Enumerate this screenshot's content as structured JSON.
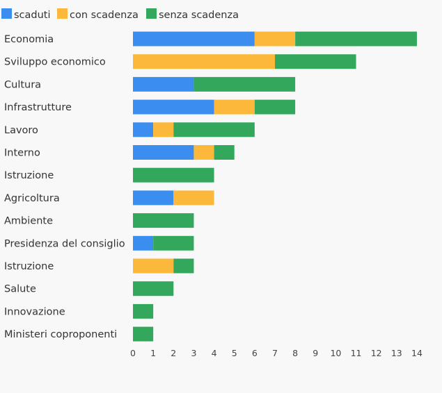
{
  "chart_data": {
    "type": "bar",
    "orientation": "horizontal",
    "stacked": true,
    "categories": [
      "Economia",
      "Sviluppo economico",
      "Cultura",
      "Infrastrutture",
      "Lavoro",
      "Interno",
      "Istruzione",
      "Agricoltura",
      "Ambiente",
      "Presidenza del consiglio",
      "Istruzione",
      "Salute",
      "Innovazione",
      "Ministeri coproponenti"
    ],
    "series": [
      {
        "name": "scaduti",
        "color": "#3b8ef0",
        "values": [
          6,
          0,
          3,
          4,
          1,
          3,
          0,
          2,
          0,
          1,
          0,
          0,
          0,
          0
        ]
      },
      {
        "name": "con scadenza",
        "color": "#fbb83a",
        "values": [
          2,
          7,
          0,
          2,
          1,
          1,
          0,
          2,
          0,
          0,
          2,
          0,
          0,
          0
        ]
      },
      {
        "name": "senza scadenza",
        "color": "#33a85c",
        "values": [
          6,
          4,
          5,
          2,
          4,
          1,
          4,
          0,
          3,
          2,
          1,
          2,
          1,
          1
        ]
      }
    ],
    "xlim": [
      0,
      14
    ],
    "xticks": [
      "0",
      "1",
      "2",
      "3",
      "4",
      "5",
      "6",
      "7",
      "8",
      "9",
      "10",
      "11",
      "12",
      "13",
      "14"
    ],
    "legend_position": "top-left",
    "grid": false
  }
}
